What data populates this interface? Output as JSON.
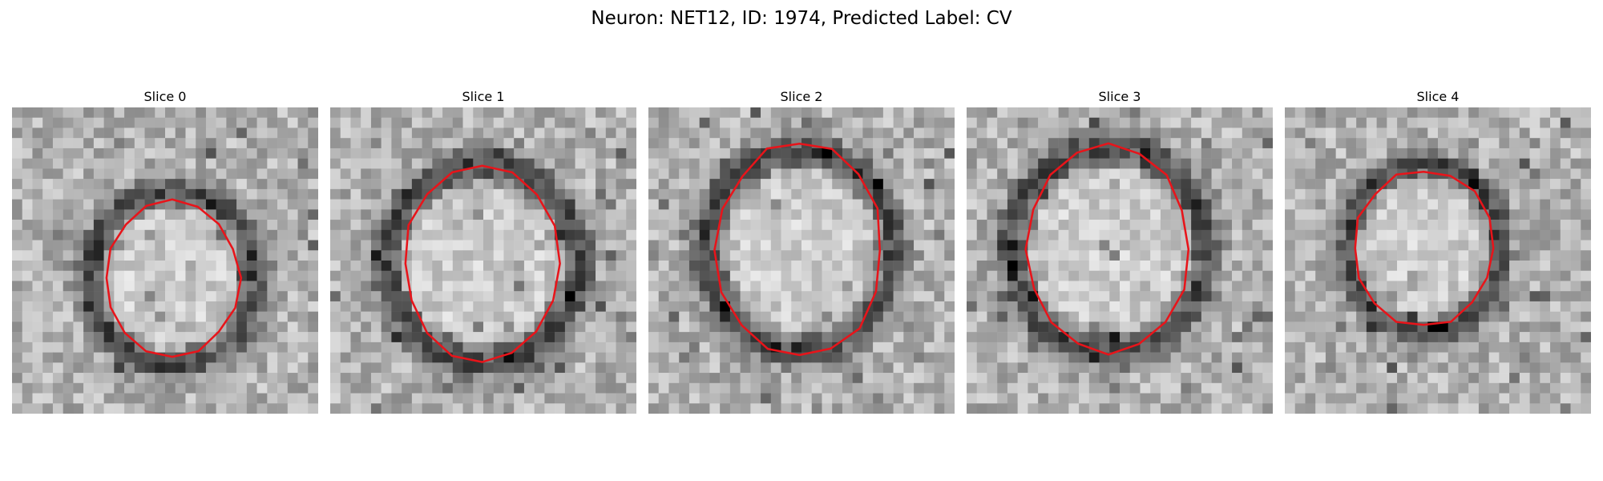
{
  "figure": {
    "title": "Neuron: NET12, ID: 1974, Predicted Label: CV"
  },
  "panels": [
    {
      "label": "Slice 0",
      "contour": {
        "center": [
          15.7,
          16.7
        ],
        "radius": [
          6.6,
          7.6
        ]
      },
      "ring": {
        "rx": 8.2,
        "ry": 8.6
      },
      "seed": 11
    },
    {
      "label": "Slice 1",
      "contour": {
        "center": [
          14.9,
          15.3
        ],
        "radius": [
          7.7,
          9.7
        ]
      },
      "ring": {
        "rx": 9.4,
        "ry": 9.6
      },
      "seed": 23
    },
    {
      "label": "Slice 2",
      "contour": {
        "center": [
          14.8,
          14.0
        ],
        "radius": [
          8.1,
          10.5
        ]
      },
      "ring": {
        "rx": 9.2,
        "ry": 9.8
      },
      "seed": 37
    },
    {
      "label": "Slice 3",
      "contour": {
        "center": [
          13.9,
          13.9
        ],
        "radius": [
          7.9,
          10.1
        ]
      },
      "ring": {
        "rx": 9.6,
        "ry": 10.0
      },
      "seed": 41
    },
    {
      "label": "Slice 4",
      "contour": {
        "center": [
          13.6,
          13.8
        ],
        "radius": [
          6.9,
          7.7
        ]
      },
      "ring": {
        "rx": 7.6,
        "ry": 8.2
      },
      "seed": 53
    }
  ],
  "contour_color": "#e8141a"
}
